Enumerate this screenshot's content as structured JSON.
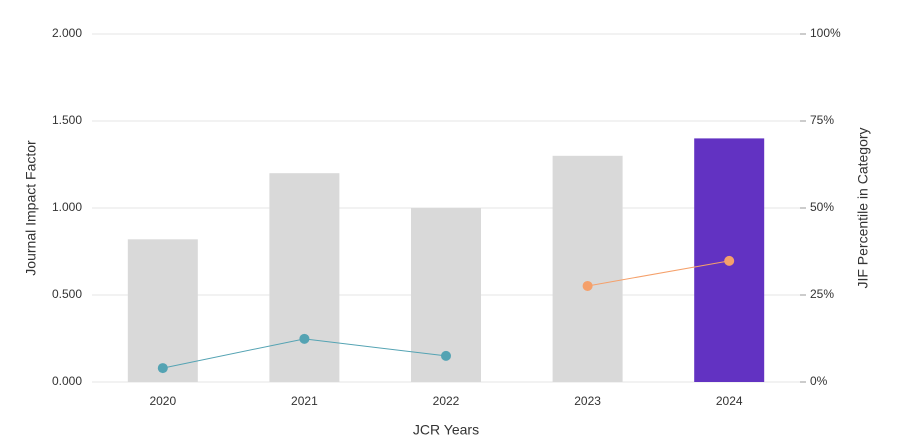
{
  "chart_data": {
    "type": "bar-line",
    "categories": [
      "2020",
      "2021",
      "2022",
      "2023",
      "2024"
    ],
    "values": [
      0.82,
      1.2,
      1.0,
      1.3,
      1.4
    ],
    "bar_colors": [
      "#d9d9d9",
      "#d9d9d9",
      "#d9d9d9",
      "#d9d9d9",
      "#6232c2"
    ],
    "series": [
      {
        "color": "#54a3b3",
        "axis": "y2",
        "values": [
          4.0,
          12.4,
          7.5,
          null,
          null
        ]
      },
      {
        "color": "#f5a06a",
        "axis": "y2",
        "values": [
          null,
          null,
          null,
          27.6,
          34.8
        ]
      }
    ],
    "ylim": [
      0,
      2
    ],
    "yticks": [
      {
        "value": 0,
        "label": "0.000"
      },
      {
        "value": 0.5,
        "label": "0.500"
      },
      {
        "value": 1,
        "label": "1.000"
      },
      {
        "value": 1.5,
        "label": "1.500"
      },
      {
        "value": 2,
        "label": "2.000"
      }
    ],
    "y2lim": [
      0,
      100
    ],
    "y2ticks": [
      {
        "value": 0,
        "label": "0%"
      },
      {
        "value": 25,
        "label": "25%"
      },
      {
        "value": 50,
        "label": "50%"
      },
      {
        "value": 75,
        "label": "75%"
      },
      {
        "value": 100,
        "label": "100%"
      }
    ],
    "xlabel": "JCR Years",
    "ylabel": "Journal Impact Factor",
    "y2label": "JIF Percentile in Category",
    "grid": true
  }
}
